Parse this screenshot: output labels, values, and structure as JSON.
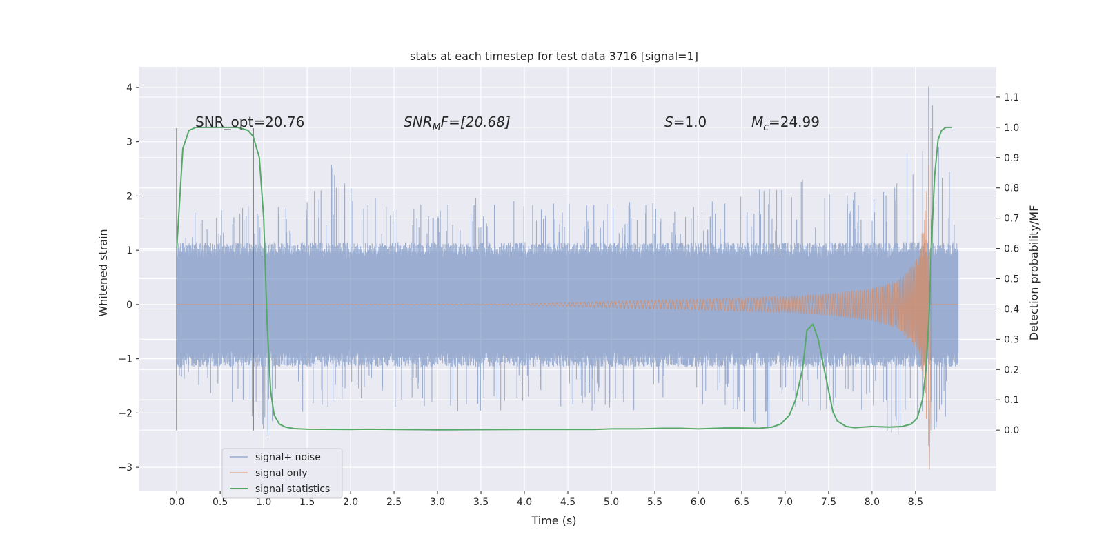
{
  "chart_data": {
    "type": "line",
    "title": "stats at each timestep for test data 3716 [signal=1]",
    "xlabel": "Time (s)",
    "ylabel": "Whitened strain",
    "ylabel_right": "Detection probability/MF",
    "xlim": [
      -0.43,
      9.43
    ],
    "ylim": [
      -3.43,
      4.38
    ],
    "ylim_right": [
      -0.2,
      1.2
    ],
    "x_ticks": [
      0.0,
      0.5,
      1.0,
      1.5,
      2.0,
      2.5,
      3.0,
      3.5,
      4.0,
      4.5,
      5.0,
      5.5,
      6.0,
      6.5,
      7.0,
      7.5,
      8.0,
      8.5
    ],
    "x_tick_labels": [
      "0.0",
      "0.5",
      "1.0",
      "1.5",
      "2.0",
      "2.5",
      "3.0",
      "3.5",
      "4.0",
      "4.5",
      "5.0",
      "5.5",
      "6.0",
      "6.5",
      "7.0",
      "7.5",
      "8.0",
      "8.5"
    ],
    "y_ticks": [
      -3,
      -2,
      -1,
      0,
      1,
      2,
      3,
      4
    ],
    "y_tick_labels": [
      "−3",
      "−2",
      "−1",
      "0",
      "1",
      "2",
      "3",
      "4"
    ],
    "y_right_ticks": [
      0.0,
      0.1,
      0.2,
      0.3,
      0.4,
      0.5,
      0.6,
      0.7,
      0.8,
      0.9,
      1.0,
      1.1
    ],
    "y_right_tick_labels": [
      "0.0",
      "0.1",
      "0.2",
      "0.3",
      "0.4",
      "0.5",
      "0.6",
      "0.7",
      "0.8",
      "0.9",
      "1.0",
      "1.1"
    ],
    "grid": true,
    "legend_placement": "lower-left",
    "annotations": {
      "snr_opt": "SNR_opt=20.76",
      "snr_mf_base": "SNR",
      "snr_mf_sub": "M",
      "snr_mf_rest": "F=[20.68]",
      "s_italic": "S",
      "s_rest": "=1.0",
      "mc_italic": "M",
      "mc_sub": "c",
      "mc_rest": "=24.99"
    },
    "vertical_markers": [
      {
        "x": 0.0,
        "y_range": [
          -2.32,
          3.25
        ]
      },
      {
        "x": 0.88,
        "y_range": [
          -2.32,
          3.25
        ]
      },
      {
        "x": 8.68,
        "y_range": [
          -2.32,
          3.25
        ]
      }
    ],
    "series": [
      {
        "name": "signal+ noise",
        "color": "#4c72b0",
        "axis": "left",
        "style": "noise band",
        "x_range": [
          0.0,
          8.99
        ],
        "typical_amplitude": 1.0,
        "envelope_max": [
          [
            0.0,
            1.7
          ],
          [
            0.5,
            1.9
          ],
          [
            1.0,
            1.8
          ],
          [
            1.5,
            2.0
          ],
          [
            1.78,
            2.57
          ],
          [
            2.5,
            1.8
          ],
          [
            3.5,
            2.0
          ],
          [
            4.0,
            1.9
          ],
          [
            5.0,
            1.9
          ],
          [
            6.0,
            1.9
          ],
          [
            7.2,
            2.3
          ],
          [
            8.0,
            2.2
          ],
          [
            8.65,
            4.02
          ],
          [
            8.99,
            1.8
          ]
        ],
        "envelope_min": [
          [
            0.0,
            -1.3
          ],
          [
            1.05,
            -2.43
          ],
          [
            1.5,
            -2.0
          ],
          [
            2.5,
            -1.9
          ],
          [
            3.5,
            -2.0
          ],
          [
            4.2,
            -1.9
          ],
          [
            5.0,
            -2.0
          ],
          [
            6.0,
            -1.9
          ],
          [
            6.8,
            -2.28
          ],
          [
            7.5,
            -2.0
          ],
          [
            8.3,
            -2.4
          ],
          [
            8.65,
            -2.6
          ],
          [
            8.99,
            -1.9
          ]
        ]
      },
      {
        "name": "signal only",
        "color": "#dd8452",
        "axis": "left",
        "style": "chirp",
        "x_range": [
          0.0,
          8.99
        ],
        "envelope_amplitude": [
          [
            0.0,
            0.0
          ],
          [
            4.0,
            0.01
          ],
          [
            5.0,
            0.06
          ],
          [
            6.0,
            0.1
          ],
          [
            7.0,
            0.15
          ],
          [
            7.5,
            0.2
          ],
          [
            8.0,
            0.3
          ],
          [
            8.3,
            0.45
          ],
          [
            8.5,
            0.8
          ],
          [
            8.6,
            1.5
          ],
          [
            8.64,
            2.6
          ],
          [
            8.65,
            -3.1
          ],
          [
            8.67,
            0.02
          ],
          [
            8.99,
            0.0
          ]
        ]
      },
      {
        "name": "signal statistics",
        "color": "#55a868",
        "axis": "right",
        "style": "line",
        "x": [
          0.0,
          0.07,
          0.14,
          0.22,
          0.35,
          0.5,
          0.7,
          0.82,
          0.88,
          0.95,
          1.0,
          1.04,
          1.08,
          1.12,
          1.18,
          1.25,
          1.35,
          1.5,
          2.0,
          2.2,
          2.5,
          3.0,
          4.0,
          4.8,
          5.0,
          5.3,
          5.6,
          5.8,
          6.0,
          6.3,
          6.5,
          6.7,
          6.85,
          6.95,
          7.05,
          7.12,
          7.2,
          7.25,
          7.32,
          7.38,
          7.45,
          7.55,
          7.6,
          7.7,
          7.8,
          8.0,
          8.2,
          8.35,
          8.45,
          8.52,
          8.58,
          8.62,
          8.66,
          8.68,
          8.72,
          8.76,
          8.8,
          8.85,
          8.92
        ],
        "values": [
          0.6,
          0.93,
          0.99,
          1.0,
          1.0,
          1.0,
          1.0,
          0.99,
          0.97,
          0.9,
          0.7,
          0.35,
          0.13,
          0.05,
          0.02,
          0.01,
          0.005,
          0.003,
          0.002,
          0.003,
          0.002,
          0.001,
          0.002,
          0.002,
          0.004,
          0.004,
          0.006,
          0.006,
          0.004,
          0.007,
          0.007,
          0.006,
          0.01,
          0.02,
          0.05,
          0.1,
          0.2,
          0.33,
          0.35,
          0.3,
          0.2,
          0.06,
          0.03,
          0.012,
          0.008,
          0.012,
          0.01,
          0.012,
          0.02,
          0.04,
          0.1,
          0.2,
          0.4,
          0.6,
          0.84,
          0.96,
          0.99,
          1.0,
          1.0
        ]
      }
    ]
  }
}
